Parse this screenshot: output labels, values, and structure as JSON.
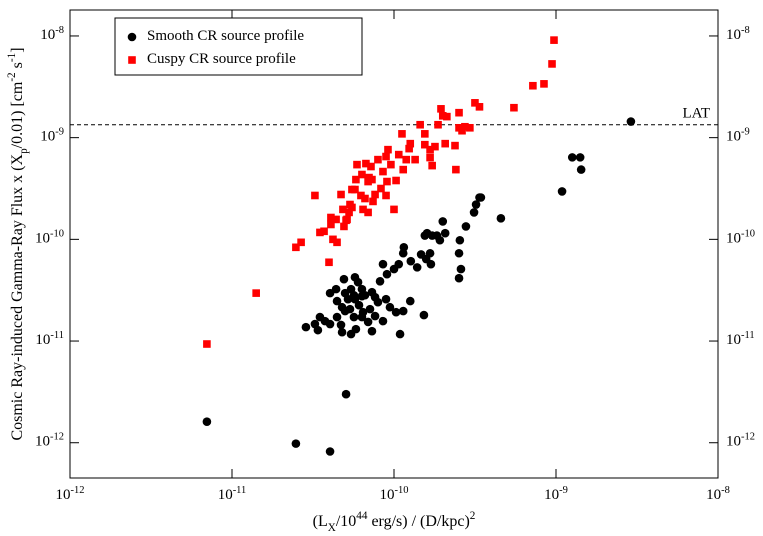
{
  "chart_data": {
    "type": "scatter",
    "x_label": "(L_{X}/10^{44} erg/s) / (D/kpc)^{2}",
    "y_label": "Cosmic Ray-induced Gamma-Ray Flux x (X_{p}/0.01) [cm^{-2} s^{-1}]",
    "x_log": true,
    "y_log": true,
    "xlim": [
      1e-12,
      1e-08
    ],
    "ylim": [
      4.5e-13,
      1.8e-08
    ],
    "xticks": [
      {
        "value": 1e-12,
        "label": "10^{-12}"
      },
      {
        "value": 1e-11,
        "label": "10^{-11}"
      },
      {
        "value": 1e-10,
        "label": "10^{-10}"
      },
      {
        "value": 1e-09,
        "label": "10^{-9}"
      },
      {
        "value": 1e-08,
        "label": "10^{-8}"
      }
    ],
    "yticks": [
      {
        "value": 1e-12,
        "label": "10^{-12}"
      },
      {
        "value": 1e-11,
        "label": "10^{-11}"
      },
      {
        "value": 1e-10,
        "label": "10^{-10}"
      },
      {
        "value": 1e-09,
        "label": "10^{-9}"
      },
      {
        "value": 1e-08,
        "label": "10^{-8}"
      }
    ],
    "legend": "upper left",
    "reference_line": {
      "value": 1.34e-09,
      "label": "LAT"
    },
    "series": [
      {
        "name": "Smooth CR source profile",
        "color": "#000000",
        "marker": "circle",
        "x": [
          7e-12,
          2.48e-11,
          4.03e-11,
          5.06e-11,
          2.9e-09,
          1.26e-09,
          1.41e-09,
          1.43e-09,
          1.09e-09,
          3.21e-10,
          3.44e-10,
          3.12e-10,
          3.37e-10,
          4.57e-10,
          2e-10,
          2.78e-10,
          1.6e-10,
          1.72e-10,
          1.84e-10,
          2.07e-10,
          1.92e-10,
          1.55e-10,
          2.55e-10,
          2.52e-10,
          2.59e-10,
          2.52e-10,
          1.15e-10,
          1.14e-10,
          1.47e-10,
          1.58e-10,
          1.67e-10,
          1.69e-10,
          1.39e-10,
          1.07e-10,
          1.27e-10,
          1e-10,
          8.55e-11,
          9.05e-11,
          8.2e-11,
          5.74e-11,
          6e-11,
          6.34e-11,
          4.91e-11,
          5.43e-11,
          4.39e-11,
          4.99e-11,
          5.66e-11,
          6.62e-11,
          7.31e-11,
          7.64e-11,
          5.2e-11,
          4.45e-11,
          4.03e-11,
          4.78e-11,
          5.35e-11,
          6.08e-11,
          6.44e-11,
          7.11e-11,
          7.64e-11,
          8.93e-11,
          9.44e-11,
          7.96e-11,
          1.26e-10,
          1.03e-10,
          1.14e-10,
          1.53e-10,
          1.09e-10,
          7.31e-11,
          5.43e-11,
          4.78e-11,
          4.03e-11,
          3.49e-11,
          3.75e-11,
          3.25e-11,
          2.86e-11,
          3.39e-11,
          5.82e-11,
          6.92e-11,
          8.55e-11,
          5.66e-11,
          6.34e-11,
          4.45e-11,
          4.71e-11,
          4.99e-11,
          6.34e-11,
          5.74e-11
        ],
        "values": [
          1.61e-12,
          9.8e-13,
          8.2e-13,
          3e-12,
          1.44e-09,
          6.4e-10,
          6.4e-10,
          4.85e-10,
          2.96e-10,
          2.2e-10,
          2.58e-10,
          1.84e-10,
          2.58e-10,
          1.61e-10,
          1.5e-10,
          1.34e-10,
          1.15e-10,
          1.09e-10,
          1.09e-10,
          1.15e-10,
          9.8e-11,
          1.09e-10,
          9.8e-11,
          7.3e-11,
          5.1e-11,
          4.15e-11,
          8.35e-11,
          7.3e-11,
          7.1e-11,
          6.4e-11,
          7.3e-11,
          5.7e-11,
          5.3e-11,
          5.7e-11,
          6.1e-11,
          5.1e-11,
          5.7e-11,
          4.54e-11,
          3.87e-11,
          4.24e-11,
          3.79e-11,
          3.24e-11,
          4.06e-11,
          3.24e-11,
          3.24e-11,
          2.96e-11,
          2.82e-11,
          2.82e-11,
          3.02e-11,
          2.7e-11,
          2.58e-11,
          2.47e-11,
          2.96e-11,
          2.15e-11,
          2.06e-11,
          2.25e-11,
          1.92e-11,
          2.06e-11,
          1.76e-11,
          2.58e-11,
          2.15e-11,
          2.41e-11,
          2.47e-11,
          1.92e-11,
          1.97e-11,
          1.8e-11,
          1.17e-11,
          1.25e-11,
          1.17e-11,
          1.22e-11,
          1.47e-11,
          1.72e-11,
          1.57e-11,
          1.47e-11,
          1.37e-11,
          1.28e-11,
          1.31e-11,
          1.54e-11,
          1.57e-11,
          1.72e-11,
          1.72e-11,
          1.72e-11,
          1.44e-11,
          1.97e-11,
          2.76e-11,
          2.58e-11
        ]
      },
      {
        "name": "Cuspy CR source profile",
        "color": "#ff0000",
        "marker": "square",
        "x": [
          7e-12,
          1.41e-11,
          2.48e-11,
          2.67e-11,
          3.49e-11,
          3.25e-11,
          3.7e-11,
          4.08e-11,
          4.2e-11,
          4.45e-11,
          3.97e-11,
          4.71e-11,
          4.91e-11,
          4.84e-11,
          5.28e-11,
          5.06e-11,
          5.35e-11,
          5.5e-11,
          5.82e-11,
          5.91e-11,
          6.25e-11,
          6.62e-11,
          6.44e-11,
          6.34e-11,
          6.92e-11,
          7.31e-11,
          6.92e-11,
          7.42e-11,
          7.64e-11,
          8.31e-11,
          9.05e-11,
          8.93e-11,
          1e-10,
          8.93e-11,
          9.57e-11,
          1.03e-10,
          1.14e-10,
          1.19e-10,
          1.26e-10,
          1.35e-10,
          1.45e-10,
          1.55e-10,
          1.67e-10,
          1.72e-10,
          1.79e-10,
          1.87e-10,
          2e-10,
          2.12e-10,
          2.52e-10,
          2.52e-10,
          2.63e-10,
          2.38e-10,
          2.41e-10,
          2.74e-10,
          2.94e-10,
          3.16e-10,
          3.37e-10,
          5.5e-10,
          7.2e-10,
          8.43e-10,
          9.45e-10,
          9.72e-10,
          2.07e-10,
          1.95e-10,
          1.67e-10,
          1.55e-10,
          1.24e-10,
          1.12e-10,
          1.07e-10,
          9.18e-11,
          8.55e-11,
          7.96e-11,
          7.01e-11,
          6.71e-11,
          5.74e-11,
          5.13e-11,
          4.39e-11,
          4.08e-11,
          5.5e-11,
          7.21e-11
        ],
        "values": [
          9.35e-12,
          2.96e-11,
          8.35e-11,
          9.35e-11,
          1.17e-10,
          2.7e-10,
          1.2e-10,
          1.64e-10,
          1e-10,
          9.35e-11,
          5.95e-11,
          2.76e-10,
          1.34e-10,
          1.97e-10,
          1.84e-10,
          1.54e-10,
          2.2e-10,
          3.09e-10,
          3.87e-10,
          5.43e-10,
          2.7e-10,
          2.52e-10,
          1.97e-10,
          4.34e-10,
          3.7e-10,
          3.87e-10,
          1.84e-10,
          2.36e-10,
          2.76e-10,
          3.16e-10,
          3.7e-10,
          2.7e-10,
          1.97e-10,
          6.52e-10,
          5.43e-10,
          3.79e-10,
          4.85e-10,
          6.08e-10,
          8.73e-10,
          6.08e-10,
          1.34e-09,
          8.53e-10,
          6.37e-10,
          5.31e-10,
          8.16e-10,
          1.34e-09,
          1.64e-09,
          1.61e-09,
          1.76e-09,
          1.25e-09,
          1.17e-09,
          8.35e-10,
          4.85e-10,
          1.28e-09,
          1.25e-09,
          2.2e-09,
          2.01e-09,
          1.97e-09,
          3.24e-09,
          3.38e-09,
          5.31e-09,
          9.1e-09,
          8.73e-10,
          1.92e-09,
          7.62e-10,
          1.09e-09,
          7.8e-10,
          1.09e-09,
          6.81e-10,
          7.62e-10,
          4.64e-10,
          6.08e-10,
          4.05e-10,
          5.56e-10,
          3.09e-10,
          1.57e-10,
          1.57e-10,
          1.4e-10,
          2.06e-10,
          5.2e-10
        ]
      }
    ]
  }
}
